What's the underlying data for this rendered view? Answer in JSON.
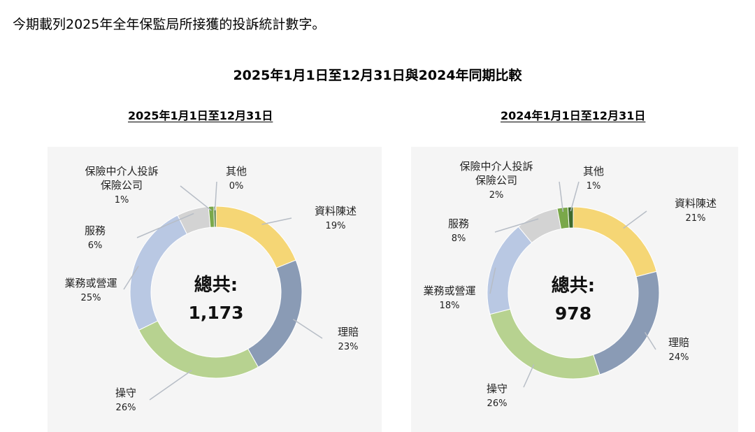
{
  "intro": "今期載列2025年全年保監局所接獲的投訴統計數字。",
  "main_title": "2025年1月1日至12月31日與2024年同期比較",
  "colors": {
    "資料陳述": "#f5d675",
    "理賠": "#8a9bb5",
    "操守": "#b7d290",
    "業務或營運": "#b9c8e3",
    "服務": "#d3d3d3",
    "保險中介人投訴保險公司": "#7aa84a",
    "其他": "#3f6b2c"
  },
  "chart_data": [
    {
      "type": "pie",
      "subtitle": "2025年1月1日至12月31日",
      "total_label": "總共:",
      "total_value": "1,173",
      "slices": [
        {
          "key": "資料陳述",
          "label": [
            "資料陳述"
          ],
          "pct": "19%",
          "value": 19
        },
        {
          "key": "理賠",
          "label": [
            "理賠"
          ],
          "pct": "23%",
          "value": 23
        },
        {
          "key": "操守",
          "label": [
            "操守"
          ],
          "pct": "26%",
          "value": 26
        },
        {
          "key": "業務或營運",
          "label": [
            "業務或營運"
          ],
          "pct": "25%",
          "value": 25
        },
        {
          "key": "服務",
          "label": [
            "服務"
          ],
          "pct": "6%",
          "value": 6
        },
        {
          "key": "保險中介人投訴保險公司",
          "label": [
            "保險中介人投訴",
            "保險公司"
          ],
          "pct": "1%",
          "value": 1
        },
        {
          "key": "其他",
          "label": [
            "其他"
          ],
          "pct": "0%",
          "value": 0.4
        }
      ]
    },
    {
      "type": "pie",
      "subtitle": "2024年1月1日至12月31日",
      "total_label": "總共:",
      "total_value": "978",
      "slices": [
        {
          "key": "資料陳述",
          "label": [
            "資料陳述"
          ],
          "pct": "21%",
          "value": 21
        },
        {
          "key": "理賠",
          "label": [
            "理賠"
          ],
          "pct": "24%",
          "value": 24
        },
        {
          "key": "操守",
          "label": [
            "操守"
          ],
          "pct": "26%",
          "value": 26
        },
        {
          "key": "業務或營運",
          "label": [
            "業務或營運"
          ],
          "pct": "18%",
          "value": 18
        },
        {
          "key": "服務",
          "label": [
            "服務"
          ],
          "pct": "8%",
          "value": 8
        },
        {
          "key": "保險中介人投訴保險公司",
          "label": [
            "保險中介人投訴",
            "保險公司"
          ],
          "pct": "2%",
          "value": 2
        },
        {
          "key": "其他",
          "label": [
            "其他"
          ],
          "pct": "1%",
          "value": 1
        }
      ]
    }
  ]
}
